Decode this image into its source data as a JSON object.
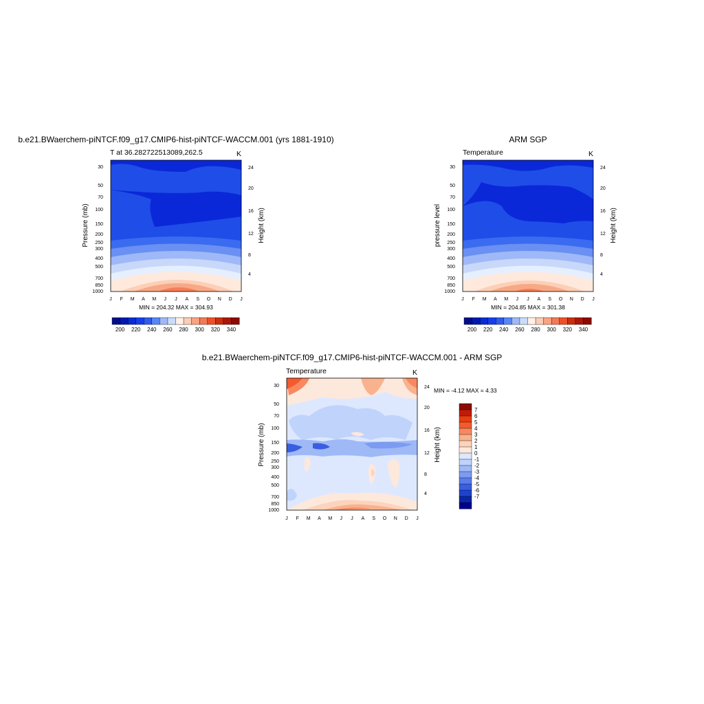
{
  "palette": [
    "#00008b",
    "#0000c8",
    "#0a28d8",
    "#1f4de8",
    "#3a6bf0",
    "#6990f2",
    "#9fb8f7",
    "#c8d8fa",
    "#e6efff",
    "#ffe9dd",
    "#fccfb6",
    "#f7a986",
    "#f57e56",
    "#f55a2e",
    "#dc3512",
    "#b01c08",
    "#8b0a00"
  ],
  "cb_temp": {
    "colors": [
      "#000e8a",
      "#0017b0",
      "#0a2bd6",
      "#173ee8",
      "#2f5bef",
      "#5a85f2",
      "#9db9f7",
      "#cbdcfb",
      "#fff0e8",
      "#fcccb3",
      "#f9a382",
      "#f57955",
      "#ed5028",
      "#c92e0f",
      "#a8170a",
      "#8b0a00"
    ],
    "labels": [
      "200",
      "220",
      "240",
      "260",
      "280",
      "300",
      "320",
      "340"
    ]
  },
  "cb_diff": {
    "colors": [
      "#8b0a00",
      "#c11b07",
      "#e83d10",
      "#f55a2e",
      "#f8895f",
      "#f9b28e",
      "#fcd3bb",
      "#fde8dc",
      "#dde8ff",
      "#bfd3fb",
      "#9eb9f6",
      "#7d9bf0",
      "#5a7de9",
      "#3a5ee0",
      "#1f42cc",
      "#0a26a8",
      "#00008b"
    ],
    "labels": [
      "7",
      "6",
      "5",
      "4",
      "3",
      "2",
      "1",
      "0",
      "-1",
      "-2",
      "-3",
      "-4",
      "-5",
      "-6",
      "-7"
    ]
  },
  "axes": {
    "months": [
      "J",
      "F",
      "M",
      "A",
      "M",
      "J",
      "J",
      "A",
      "S",
      "O",
      "N",
      "D",
      "J"
    ],
    "pressure_ticks": [
      "30",
      "50",
      "70",
      "100",
      "150",
      "200",
      "250",
      "300",
      "400",
      "500",
      "700",
      "850",
      "1000"
    ],
    "height_ticks": [
      "24",
      "20",
      "16",
      "12",
      "8",
      "4"
    ]
  },
  "panels": {
    "model": {
      "title": "b.e21.BWaerchem-piNTCF.f09_g17.CMIP6-hist-piNTCF-WACCM.001 (yrs 1881-1910)",
      "left_label": "T at 36.282722513089,262.5",
      "unit": "K",
      "ylabel": "Pressure (mb)",
      "y2label": "Height (km)",
      "stats": "MIN = 204.32 MAX = 304.93"
    },
    "obs": {
      "title": "ARM SGP",
      "left_label": "Temperature",
      "unit": "K",
      "ylabel": "pressure level",
      "y2label": "Height (km)",
      "stats": "MIN = 204.85 MAX = 301.38"
    },
    "diff": {
      "title": "b.e21.BWaerchem-piNTCF.f09_g17.CMIP6-hist-piNTCF-WACCM.001 - ARM SGP",
      "left_label": "Temperature",
      "unit": "K",
      "ylabel": "Pressure (mb)",
      "y2label": "Height (km)",
      "stats": "MIN =  -4.12 MAX =   4.33"
    }
  },
  "chart_data": [
    {
      "type": "heatmap",
      "title": "b.e21.BWaerchem-piNTCF.f09_g17.CMIP6-hist-piNTCF-WACCM.001 (yrs 1881-1910)",
      "variable": "T at 36.282722513089,262.5",
      "units": "K",
      "x": [
        "J",
        "F",
        "M",
        "A",
        "M",
        "J",
        "J",
        "A",
        "S",
        "O",
        "N",
        "D",
        "J"
      ],
      "y_pressure_mb": [
        30,
        1000
      ],
      "min": 204.32,
      "max": 304.93
    },
    {
      "type": "heatmap",
      "title": "ARM SGP",
      "variable": "Temperature",
      "units": "K",
      "x": [
        "J",
        "F",
        "M",
        "A",
        "M",
        "J",
        "J",
        "A",
        "S",
        "O",
        "N",
        "D",
        "J"
      ],
      "y_pressure_mb": [
        30,
        1000
      ],
      "min": 204.85,
      "max": 301.38
    },
    {
      "type": "heatmap",
      "title": "b.e21.BWaerchem-piNTCF.f09_g17.CMIP6-hist-piNTCF-WACCM.001 - ARM SGP",
      "variable": "Temperature",
      "units": "K",
      "x": [
        "J",
        "F",
        "M",
        "A",
        "M",
        "J",
        "J",
        "A",
        "S",
        "O",
        "N",
        "D",
        "J"
      ],
      "y_pressure_mb": [
        30,
        1000
      ],
      "min": -4.12,
      "max": 4.33
    }
  ]
}
